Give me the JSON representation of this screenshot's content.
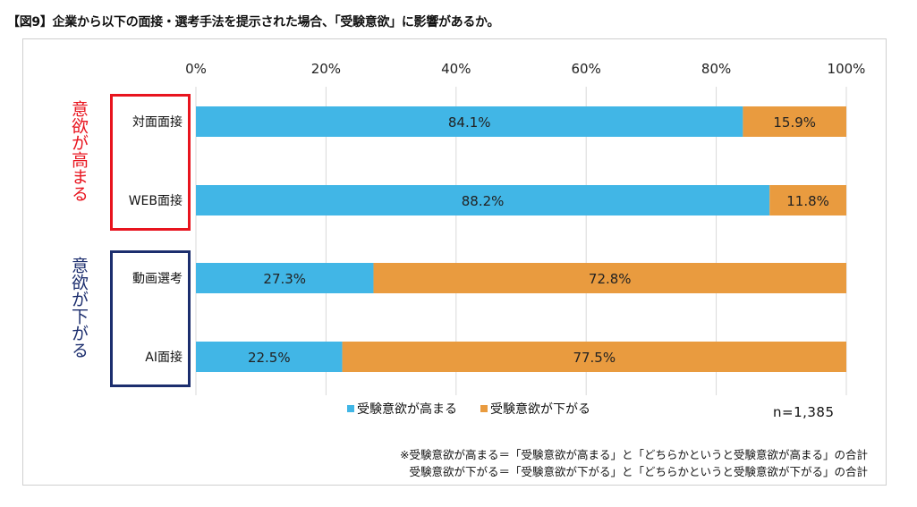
{
  "title": "【図9】企業から以下の面接・選考手法を提示された場合、「受験意欲」に影響があるか。",
  "groups": [
    {
      "label": "意欲が高まる",
      "color": "#e8141e"
    },
    {
      "label": "意欲が下がる",
      "color": "#1c2e6e"
    }
  ],
  "legend": [
    {
      "label": "受験意欲が高まる",
      "color": "#41b6e6"
    },
    {
      "label": "受験意欲が下がる",
      "color": "#e99b3f"
    }
  ],
  "sample_size": "n=1,385",
  "notes": [
    "※受験意欲が高まる＝「受験意欲が高まる」と「どちらかというと受験意欲が高まる」の合計",
    "受験意欲が下がる＝「受験意欲が下がる」と「どちらかというと受験意欲が下がる」の合計"
  ],
  "chart_data": {
    "type": "bar",
    "orientation": "horizontal",
    "stacked": true,
    "categories": [
      "対面面接",
      "WEB面接",
      "動画選考",
      "AI面接"
    ],
    "series": [
      {
        "name": "受験意欲が高まる",
        "values": [
          84.1,
          88.2,
          27.3,
          22.5
        ],
        "labels": [
          "84.1%",
          "88.2%",
          "27.3%",
          "22.5%"
        ],
        "color": "#41b6e6"
      },
      {
        "name": "受験意欲が下がる",
        "values": [
          15.9,
          11.8,
          72.8,
          77.5
        ],
        "labels": [
          "15.9%",
          "11.8%",
          "72.8%",
          "77.5%"
        ],
        "color": "#e99b3f"
      }
    ],
    "xlim": [
      0,
      100
    ],
    "xticks": [
      0,
      20,
      40,
      60,
      80,
      100
    ],
    "xtick_labels": [
      "0%",
      "20%",
      "40%",
      "60%",
      "80%",
      "100%"
    ],
    "grid": true,
    "axis_position": "top",
    "legend_position": "bottom"
  }
}
